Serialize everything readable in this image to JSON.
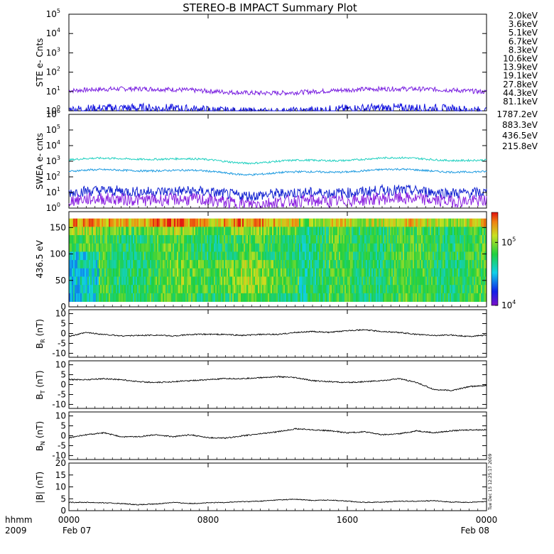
{
  "title": "STEREO-B IMPACT Summary Plot",
  "colors": {
    "axis": "#000000"
  },
  "chart_data": [
    {
      "type": "line",
      "id": "ste",
      "ylabel": "STE e- Cnts",
      "yscale": "log",
      "ylim": [
        1,
        100000
      ],
      "yticks": [
        {
          "base": "10",
          "exp": "0"
        },
        {
          "base": "10",
          "exp": "1"
        },
        {
          "base": "10",
          "exp": "2"
        },
        {
          "base": "10",
          "exp": "3"
        },
        {
          "base": "10",
          "exp": "4"
        },
        {
          "base": "10",
          "exp": "5"
        }
      ],
      "legend": [
        {
          "label": "2.0keV",
          "color": "#9a2bd0"
        },
        {
          "label": "3.6keV",
          "color": "#4a26c8"
        },
        {
          "label": "5.1keV",
          "color": "#2a48e0"
        },
        {
          "label": "6.7keV",
          "color": "#1e9be0"
        },
        {
          "label": "8.3keV",
          "color": "#20c8c0"
        },
        {
          "label": "10.6keV",
          "color": "#1ed070"
        },
        {
          "label": "13.9keV",
          "color": "#40d020"
        },
        {
          "label": "19.1keV",
          "color": "#c0d020"
        },
        {
          "label": "27.8keV",
          "color": "#f0c020"
        },
        {
          "label": "44.3keV",
          "color": "#f08020"
        },
        {
          "label": "81.1keV",
          "color": "#e04020"
        }
      ],
      "series": [
        {
          "name": "2.0keV",
          "level": 11,
          "noise": 0.12,
          "color": "#7a20e0"
        },
        {
          "name": "10.6keV",
          "level": 1.1,
          "noise": 0.25,
          "color": "#1010e0"
        }
      ]
    },
    {
      "type": "line",
      "id": "swea",
      "ylabel": "SWEA e- cnts",
      "yscale": "log",
      "ylim": [
        1,
        1000000
      ],
      "yticks": [
        {
          "base": "10",
          "exp": "0"
        },
        {
          "base": "10",
          "exp": "1"
        },
        {
          "base": "10",
          "exp": "2"
        },
        {
          "base": "10",
          "exp": "3"
        },
        {
          "base": "10",
          "exp": "4"
        },
        {
          "base": "10",
          "exp": "5"
        },
        {
          "base": "10",
          "exp": "6"
        }
      ],
      "legend": [
        {
          "label": "1787.2eV",
          "color": "#8a20d8"
        },
        {
          "label": "883.3eV",
          "color": "#1020c8"
        },
        {
          "label": "436.5eV",
          "color": "#1e9be0"
        },
        {
          "label": "215.8eV",
          "color": "#20d0c0"
        }
      ],
      "series": [
        {
          "name": "215.8eV",
          "level": 1200,
          "noise": 0.06,
          "color": "#20d0c0"
        },
        {
          "name": "436.5eV",
          "level": 220,
          "noise": 0.06,
          "color": "#1e9be0"
        },
        {
          "name": "883.3eV",
          "level": 10,
          "noise": 0.35,
          "color": "#1020d0"
        },
        {
          "name": "1787.2eV",
          "level": 3,
          "noise": 0.4,
          "color": "#8a20e0"
        }
      ]
    },
    {
      "type": "heatmap",
      "id": "pad",
      "ylabel": "436.5 eV",
      "ylim": [
        0,
        180
      ],
      "yticks": [
        "0",
        "50",
        "100",
        "150"
      ],
      "colorbar": {
        "min": 10000,
        "max": 300000,
        "ticks": [
          {
            "base": "10",
            "exp": "4"
          },
          {
            "base": "10",
            "exp": "5"
          }
        ]
      }
    },
    {
      "type": "line",
      "id": "br",
      "ylabel": "B",
      "ysub": "R",
      "yunit": " (nT)",
      "ylim": [
        -12,
        12
      ],
      "yticks": [
        "-10",
        "-5",
        "0",
        "5",
        "10"
      ],
      "x": [
        0,
        1,
        2,
        3,
        4,
        5,
        6,
        7,
        8,
        9,
        10,
        11,
        12,
        13,
        14,
        15,
        16,
        17,
        18,
        19,
        20,
        21,
        22,
        23,
        24
      ],
      "values": [
        -1.5,
        0.5,
        -0.5,
        -1.2,
        -1,
        -0.8,
        -1.3,
        -0.5,
        -0.4,
        -0.5,
        -1,
        -0.5,
        -0.5,
        0.5,
        1,
        0.5,
        1.5,
        1.8,
        1,
        0.5,
        -0.5,
        -1,
        -0.8,
        -1.5,
        -0.8
      ]
    },
    {
      "type": "line",
      "id": "bt",
      "ylabel": "B",
      "ysub": "T",
      "yunit": " (nT)",
      "ylim": [
        -12,
        12
      ],
      "yticks": [
        "-10",
        "-5",
        "0",
        "5",
        "10"
      ],
      "x": [
        0,
        1,
        2,
        3,
        4,
        5,
        6,
        7,
        8,
        9,
        10,
        11,
        12,
        13,
        14,
        15,
        16,
        17,
        18,
        19,
        20,
        21,
        22,
        23,
        24
      ],
      "values": [
        2.5,
        2.5,
        3,
        2.5,
        1.5,
        1,
        1.5,
        2,
        2.5,
        3,
        3,
        3.5,
        4,
        3.5,
        2,
        1.5,
        1,
        1.5,
        2,
        3,
        1,
        -2.5,
        -3,
        -1,
        -0.5
      ]
    },
    {
      "type": "line",
      "id": "bn",
      "ylabel": "B",
      "ysub": "N",
      "yunit": " (nT)",
      "ylim": [
        -12,
        12
      ],
      "yticks": [
        "-10",
        "-5",
        "0",
        "5",
        "10"
      ],
      "x": [
        0,
        1,
        2,
        3,
        4,
        5,
        6,
        7,
        8,
        9,
        10,
        11,
        12,
        13,
        14,
        15,
        16,
        17,
        18,
        19,
        20,
        21,
        22,
        23,
        24
      ],
      "values": [
        -1,
        0.5,
        1.5,
        -0.5,
        -0.5,
        0.5,
        -0.5,
        0.5,
        -1,
        -1.2,
        0,
        1,
        2,
        3.5,
        3,
        2.5,
        1.5,
        2,
        0.5,
        1,
        2.5,
        1.5,
        2.5,
        3,
        3
      ]
    },
    {
      "type": "line",
      "id": "bmag",
      "ylabel": "|B| (nT)",
      "ylim": [
        0,
        20
      ],
      "yticks": [
        "0",
        "5",
        "10",
        "15",
        "20"
      ],
      "x": [
        0,
        1,
        2,
        3,
        4,
        5,
        6,
        7,
        8,
        9,
        10,
        11,
        12,
        13,
        14,
        15,
        16,
        17,
        18,
        19,
        20,
        21,
        22,
        23,
        24
      ],
      "values": [
        3.5,
        3.5,
        3.3,
        3,
        2.5,
        2.8,
        3.5,
        3,
        3.3,
        3.5,
        3.8,
        4,
        4.5,
        4.8,
        4.3,
        4.5,
        4,
        3.5,
        3.6,
        4,
        4,
        4.2,
        3.6,
        3.5,
        3.8
      ]
    }
  ],
  "xaxis": {
    "ticks": [
      "0000",
      "0800",
      "1600",
      "0000"
    ],
    "dates": [
      "Feb 07",
      "Feb 08"
    ],
    "label_top": "hhmm",
    "label_bottom": "2009"
  },
  "timestamp": "Tue Dec 15 12:25:17 2009"
}
